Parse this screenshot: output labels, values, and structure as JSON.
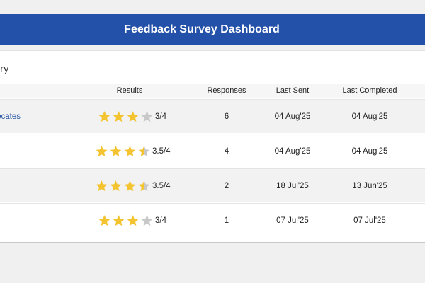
{
  "header": {
    "title": "Feedback Survey Dashboard"
  },
  "card": {
    "title_fragment": "ry"
  },
  "table": {
    "columns": {
      "results": "Results",
      "responses": "Responses",
      "last_sent": "Last Sent",
      "last_completed": "Last Completed"
    },
    "rows": [
      {
        "name_fragment": "ocates",
        "rating": 3,
        "rating_text": "3/4",
        "responses": "6",
        "last_sent": "04 Aug'25",
        "last_completed": "04 Aug'25"
      },
      {
        "name_fragment": "",
        "rating": 3.5,
        "rating_text": "3.5/4",
        "responses": "4",
        "last_sent": "04 Aug'25",
        "last_completed": "04 Aug'25"
      },
      {
        "name_fragment": "",
        "rating": 3.5,
        "rating_text": "3.5/4",
        "responses": "2",
        "last_sent": "18 Jul'25",
        "last_completed": "13 Jun'25"
      },
      {
        "name_fragment": "",
        "rating": 3,
        "rating_text": "3/4",
        "responses": "1",
        "last_sent": "07 Jul'25",
        "last_completed": "07 Jul'25"
      }
    ],
    "rating_max": 4
  },
  "colors": {
    "header_bg": "#2350a8",
    "star_filled": "#f4c430",
    "star_empty": "#c8c8c8",
    "link": "#2c5aa8"
  },
  "icons": {
    "rating_star": "star-icon"
  }
}
